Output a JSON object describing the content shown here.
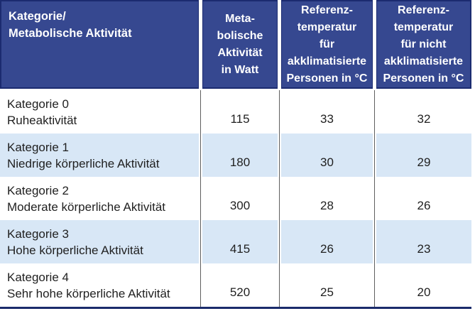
{
  "colors": {
    "header-bg": "#364890",
    "header-border": "#1B2B70",
    "header-text": "#FFFFFF",
    "row-bg": "#FFFFFF",
    "row-alt-bg": "#D8E7F6",
    "body-text": "#1F1F1F",
    "divider": "#5F5F5F",
    "bottom-rule": "#1A2B6B"
  },
  "header": {
    "col_category": "Kategorie/\nMetabolische Aktivität",
    "col_watt": "Meta-\nbolische\nAktivität\nin Watt",
    "col_temp_acclimatized": "Referenz-\ntemperatur\nfür\nakklimatisierte\nPersonen in °C",
    "col_temp_not_acclimatized": "Referenz-\ntemperatur\nfür nicht\nakklimatisierte\nPersonen in °C"
  },
  "rows": [
    {
      "category": "Kategorie 0",
      "description": "Ruheaktivität",
      "watt": "115",
      "temp_acclimatized": "33",
      "temp_not_acclimatized": "32"
    },
    {
      "category": "Kategorie 1",
      "description": "Niedrige körperliche Aktivität",
      "watt": "180",
      "temp_acclimatized": "30",
      "temp_not_acclimatized": "29"
    },
    {
      "category": "Kategorie 2",
      "description": "Moderate körperliche Aktivität",
      "watt": "300",
      "temp_acclimatized": "28",
      "temp_not_acclimatized": "26"
    },
    {
      "category": "Kategorie 3",
      "description": "Hohe körperliche Aktivität",
      "watt": "415",
      "temp_acclimatized": "26",
      "temp_not_acclimatized": "23"
    },
    {
      "category": "Kategorie 4",
      "description": "Sehr hohe körperliche Aktivität",
      "watt": "520",
      "temp_acclimatized": "25",
      "temp_not_acclimatized": "20"
    }
  ],
  "chart_data": {
    "type": "table",
    "title": "Referenztemperaturen nach metabolischer Aktivität",
    "columns": [
      "Kategorie/Metabolische Aktivität",
      "Metabolische Aktivität in Watt",
      "Referenztemperatur für akklimatisierte Personen in °C",
      "Referenztemperatur für nicht akklimatisierte Personen in °C"
    ],
    "rows": [
      [
        "Kategorie 0 – Ruheaktivität",
        115,
        33,
        32
      ],
      [
        "Kategorie 1 – Niedrige körperliche Aktivität",
        180,
        30,
        29
      ],
      [
        "Kategorie 2 – Moderate körperliche Aktivität",
        300,
        28,
        26
      ],
      [
        "Kategorie 3 – Hohe körperliche Aktivität",
        415,
        26,
        23
      ],
      [
        "Kategorie 4 – Sehr hohe körperliche Aktivität",
        520,
        25,
        20
      ]
    ]
  }
}
